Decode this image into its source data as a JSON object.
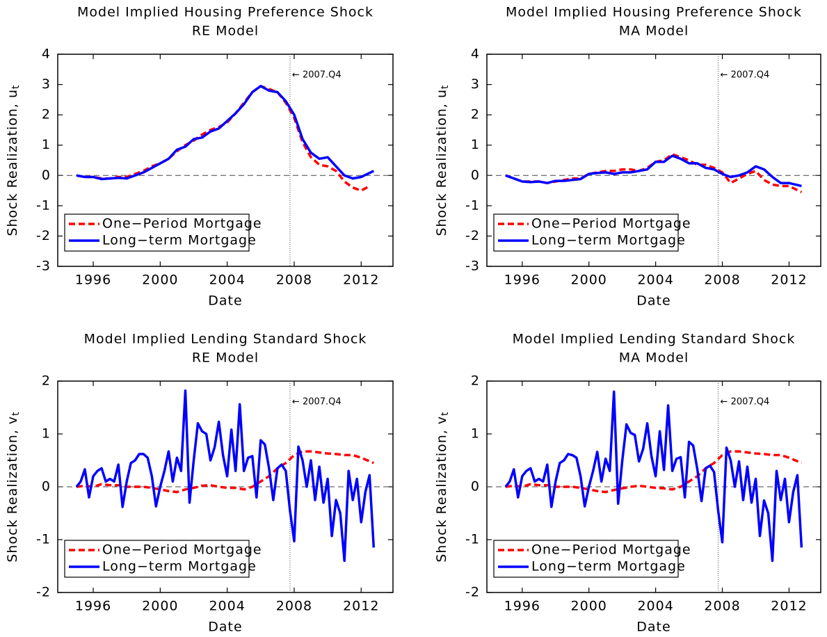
{
  "chart_data": [
    {
      "type": "line",
      "title": "Model Implied Housing Preference Shock",
      "subtitle": "RE Model",
      "xlabel": "Date",
      "ylabel": "Shock Realization, u",
      "ylabel_subscript": "t",
      "xlim": [
        1993.88,
        2013.9
      ],
      "xticks": [
        1996,
        2000,
        2004,
        2008,
        2012
      ],
      "ylim": [
        -3,
        4
      ],
      "yticks": [
        -3,
        -2,
        -1,
        0,
        1,
        2,
        3,
        4
      ],
      "hline": 0,
      "vline": 2007.75,
      "annotation": "← 2007.Q4",
      "legend": "lower left",
      "series": [
        {
          "name": "One−Period Mortgage",
          "color": "#ff0000",
          "style": "dashed",
          "x": [
            1995,
            1995.5,
            1996,
            1996.5,
            1997,
            1997.5,
            1998,
            1998.5,
            1999,
            1999.5,
            2000,
            2000.5,
            2001,
            2001.5,
            2002,
            2002.5,
            2003,
            2003.5,
            2004,
            2004.5,
            2005,
            2005.5,
            2006,
            2006.5,
            2007,
            2007.5,
            2008,
            2008.5,
            2009,
            2009.5,
            2010,
            2010.5,
            2011,
            2011.5,
            2012,
            2012.5
          ],
          "values": [
            0,
            -0.05,
            -0.05,
            -0.1,
            -0.1,
            -0.05,
            -0.05,
            0.05,
            0.15,
            0.3,
            0.4,
            0.55,
            0.8,
            1.0,
            1.15,
            1.35,
            1.5,
            1.6,
            1.75,
            2.05,
            2.4,
            2.75,
            2.95,
            2.85,
            2.75,
            2.4,
            1.9,
            1.1,
            0.6,
            0.35,
            0.3,
            0.15,
            -0.2,
            -0.4,
            -0.5,
            -0.35
          ]
        },
        {
          "name": "Long−term Mortgage",
          "color": "#0000ff",
          "style": "solid",
          "x": [
            1995,
            1995.5,
            1996,
            1996.5,
            1997,
            1997.5,
            1998,
            1998.5,
            1999,
            1999.5,
            2000,
            2000.5,
            2001,
            2001.5,
            2002,
            2002.5,
            2003,
            2003.5,
            2004,
            2004.5,
            2005,
            2005.5,
            2006,
            2006.5,
            2007,
            2007.5,
            2008,
            2008.5,
            2009,
            2009.5,
            2010,
            2010.5,
            2011,
            2011.5,
            2012,
            2012.75
          ],
          "values": [
            0,
            -0.05,
            -0.05,
            -0.12,
            -0.1,
            -0.08,
            -0.1,
            0.0,
            0.1,
            0.25,
            0.4,
            0.55,
            0.85,
            0.95,
            1.2,
            1.25,
            1.45,
            1.55,
            1.8,
            2.05,
            2.35,
            2.75,
            2.95,
            2.8,
            2.75,
            2.45,
            2.0,
            1.2,
            0.75,
            0.55,
            0.6,
            0.3,
            0.0,
            -0.1,
            -0.05,
            0.15
          ]
        }
      ]
    },
    {
      "type": "line",
      "title": "Model Implied Housing Preference Shock",
      "subtitle": "MA Model",
      "xlabel": "Date",
      "ylabel": "Shock Realization, u",
      "ylabel_subscript": "t",
      "xlim": [
        1993.88,
        2013.9
      ],
      "xticks": [
        1996,
        2000,
        2004,
        2008,
        2012
      ],
      "ylim": [
        -3,
        4
      ],
      "yticks": [
        -3,
        -2,
        -1,
        0,
        1,
        2,
        3,
        4
      ],
      "hline": 0,
      "vline": 2007.75,
      "annotation": "← 2007.Q4",
      "legend": "lower left",
      "series": [
        {
          "name": "One−Period Mortgage",
          "color": "#ff0000",
          "style": "dashed",
          "x": [
            1995,
            1995.5,
            1996,
            1996.5,
            1997,
            1997.5,
            1998,
            1998.5,
            1999,
            1999.5,
            2000,
            2000.5,
            2001,
            2001.5,
            2002,
            2002.5,
            2003,
            2003.5,
            2004,
            2004.5,
            2005,
            2005.5,
            2006,
            2006.5,
            2007,
            2007.5,
            2008,
            2008.5,
            2009,
            2009.5,
            2010,
            2010.5,
            2011,
            2011.5,
            2012,
            2012.75
          ],
          "values": [
            0,
            -0.1,
            -0.2,
            -0.2,
            -0.2,
            -0.25,
            -0.2,
            -0.15,
            -0.1,
            -0.1,
            0.05,
            0.1,
            0.15,
            0.15,
            0.2,
            0.2,
            0.15,
            0.25,
            0.45,
            0.5,
            0.7,
            0.6,
            0.5,
            0.35,
            0.35,
            0.25,
            0.1,
            -0.25,
            -0.1,
            0.05,
            0.15,
            -0.15,
            -0.3,
            -0.35,
            -0.35,
            -0.55
          ]
        },
        {
          "name": "Long−term Mortgage",
          "color": "#0000ff",
          "style": "solid",
          "x": [
            1995,
            1995.5,
            1996,
            1996.5,
            1997,
            1997.5,
            1998,
            1998.5,
            1999,
            1999.5,
            2000,
            2000.5,
            2001,
            2001.5,
            2002,
            2002.5,
            2003,
            2003.5,
            2004,
            2004.5,
            2005,
            2005.5,
            2006,
            2006.5,
            2007,
            2007.5,
            2008,
            2008.5,
            2009,
            2009.5,
            2010,
            2010.5,
            2011,
            2011.5,
            2012,
            2012.75
          ],
          "values": [
            0,
            -0.1,
            -0.2,
            -0.22,
            -0.2,
            -0.25,
            -0.18,
            -0.18,
            -0.15,
            -0.12,
            0.05,
            0.08,
            0.1,
            0.05,
            0.1,
            0.1,
            0.15,
            0.2,
            0.45,
            0.45,
            0.65,
            0.55,
            0.4,
            0.4,
            0.25,
            0.2,
            0.05,
            -0.05,
            0.0,
            0.1,
            0.3,
            0.2,
            -0.05,
            -0.25,
            -0.25,
            -0.35
          ]
        }
      ]
    },
    {
      "type": "line",
      "title": "Model Implied Lending Standard Shock",
      "subtitle": "RE Model",
      "xlabel": "Date",
      "ylabel": "Shock Realization, v",
      "ylabel_subscript": "t",
      "xlim": [
        1993.88,
        2013.9
      ],
      "xticks": [
        1996,
        2000,
        2004,
        2008,
        2012
      ],
      "ylim": [
        -2,
        2
      ],
      "yticks": [
        -2,
        -1,
        0,
        1,
        2
      ],
      "hline": 0,
      "vline": 2007.75,
      "annotation": "← 2007.Q4",
      "legend": "lower left",
      "series": [
        {
          "name": "One−Period Mortgage",
          "color": "#ff0000",
          "style": "dashed",
          "x": [
            1995,
            1995.5,
            1996,
            1996.5,
            1997,
            1997.5,
            1998,
            1998.5,
            1999,
            1999.5,
            2000,
            2000.5,
            2001,
            2001.5,
            2002,
            2002.5,
            2003,
            2003.5,
            2004,
            2004.5,
            2005,
            2005.5,
            2006,
            2006.5,
            2007,
            2007.5,
            2008,
            2008.5,
            2009,
            2009.5,
            2010,
            2010.5,
            2011,
            2011.5,
            2012,
            2012.75
          ],
          "values": [
            0,
            0.02,
            0.0,
            0.05,
            0.03,
            0.03,
            0.0,
            0.0,
            0.0,
            -0.02,
            -0.05,
            -0.08,
            -0.1,
            -0.05,
            -0.02,
            0.02,
            0.03,
            0.0,
            -0.02,
            -0.02,
            -0.05,
            0.0,
            0.1,
            0.2,
            0.35,
            0.45,
            0.6,
            0.67,
            0.67,
            0.65,
            0.63,
            0.62,
            0.6,
            0.6,
            0.55,
            0.45
          ]
        },
        {
          "name": "Long−term Mortgage",
          "color": "#0000ff",
          "style": "solid",
          "x": [
            1995,
            1995.25,
            1995.5,
            1995.75,
            1996,
            1996.25,
            1996.5,
            1996.75,
            1997,
            1997.25,
            1997.5,
            1997.75,
            1998,
            1998.25,
            1998.5,
            1998.75,
            1999,
            1999.25,
            1999.5,
            1999.75,
            2000,
            2000.25,
            2000.5,
            2000.75,
            2001,
            2001.25,
            2001.5,
            2001.75,
            2002,
            2002.25,
            2002.5,
            2002.75,
            2003,
            2003.25,
            2003.5,
            2003.75,
            2004,
            2004.25,
            2004.5,
            2004.75,
            2005,
            2005.25,
            2005.5,
            2005.75,
            2006,
            2006.25,
            2006.5,
            2006.75,
            2007,
            2007.25,
            2007.5,
            2007.75,
            2008,
            2008.25,
            2008.5,
            2008.75,
            2009,
            2009.25,
            2009.5,
            2009.75,
            2010,
            2010.25,
            2010.5,
            2010.75,
            2011,
            2011.25,
            2011.5,
            2011.75,
            2012,
            2012.25,
            2012.5,
            2012.75
          ],
          "values": [
            0,
            0.1,
            0.33,
            -0.2,
            0.2,
            0.3,
            0.35,
            0.1,
            0.15,
            0.1,
            0.42,
            -0.38,
            0.1,
            0.45,
            0.5,
            0.62,
            0.62,
            0.55,
            0.2,
            -0.37,
            0.0,
            0.3,
            0.67,
            0.1,
            0.55,
            0.3,
            1.82,
            -0.3,
            0.5,
            1.2,
            1.05,
            1.0,
            0.5,
            0.75,
            1.23,
            0.6,
            0.2,
            1.08,
            0.3,
            1.56,
            0.3,
            0.55,
            0.58,
            -0.2,
            0.88,
            0.8,
            0.35,
            -0.25,
            0.35,
            0.42,
            0.3,
            -0.45,
            -1.03,
            0.76,
            0.5,
            0.0,
            0.5,
            -0.25,
            0.38,
            -0.3,
            0.15,
            -0.93,
            -0.25,
            -0.5,
            -1.4,
            0.3,
            -0.25,
            0.15,
            -0.67,
            -0.1,
            0.22,
            -1.15
          ]
        }
      ]
    },
    {
      "type": "line",
      "title": "Model Implied Lending Standard Shock",
      "subtitle": "MA Model",
      "xlabel": "Date",
      "ylabel": "Shock Realization, v",
      "ylabel_subscript": "t",
      "xlim": [
        1993.88,
        2013.9
      ],
      "xticks": [
        1996,
        2000,
        2004,
        2008,
        2012
      ],
      "ylim": [
        -2,
        2
      ],
      "yticks": [
        -2,
        -1,
        0,
        1,
        2
      ],
      "hline": 0,
      "vline": 2007.75,
      "annotation": "← 2007.Q4",
      "legend": "lower left",
      "series": [
        {
          "name": "One−Period Mortgage",
          "color": "#ff0000",
          "style": "dashed",
          "x": [
            1995,
            1995.5,
            1996,
            1996.5,
            1997,
            1997.5,
            1998,
            1998.5,
            1999,
            1999.5,
            2000,
            2000.5,
            2001,
            2001.5,
            2002,
            2002.5,
            2003,
            2003.5,
            2004,
            2004.5,
            2005,
            2005.5,
            2006,
            2006.5,
            2007,
            2007.5,
            2008,
            2008.5,
            2009,
            2009.5,
            2010,
            2010.5,
            2011,
            2011.5,
            2012,
            2012.75
          ],
          "values": [
            0,
            0.02,
            0.0,
            0.05,
            0.03,
            0.03,
            0.0,
            0.0,
            0.0,
            -0.02,
            -0.05,
            -0.08,
            -0.1,
            -0.06,
            -0.03,
            0.0,
            0.02,
            0.0,
            -0.02,
            -0.03,
            -0.05,
            0.0,
            0.1,
            0.2,
            0.35,
            0.45,
            0.6,
            0.67,
            0.67,
            0.65,
            0.63,
            0.62,
            0.6,
            0.6,
            0.55,
            0.45
          ]
        },
        {
          "name": "Long−term Mortgage",
          "color": "#0000ff",
          "style": "solid",
          "x": [
            1995,
            1995.25,
            1995.5,
            1995.75,
            1996,
            1996.25,
            1996.5,
            1996.75,
            1997,
            1997.25,
            1997.5,
            1997.75,
            1998,
            1998.25,
            1998.5,
            1998.75,
            1999,
            1999.25,
            1999.5,
            1999.75,
            2000,
            2000.25,
            2000.5,
            2000.75,
            2001,
            2001.25,
            2001.5,
            2001.75,
            2002,
            2002.25,
            2002.5,
            2002.75,
            2003,
            2003.25,
            2003.5,
            2003.75,
            2004,
            2004.25,
            2004.5,
            2004.75,
            2005,
            2005.25,
            2005.5,
            2005.75,
            2006,
            2006.25,
            2006.5,
            2006.75,
            2007,
            2007.25,
            2007.5,
            2007.75,
            2008,
            2008.25,
            2008.5,
            2008.75,
            2009,
            2009.25,
            2009.5,
            2009.75,
            2010,
            2010.25,
            2010.5,
            2010.75,
            2011,
            2011.25,
            2011.5,
            2011.75,
            2012,
            2012.25,
            2012.5,
            2012.75
          ],
          "values": [
            0,
            0.1,
            0.33,
            -0.2,
            0.2,
            0.3,
            0.35,
            0.1,
            0.15,
            0.1,
            0.42,
            -0.38,
            0.1,
            0.45,
            0.5,
            0.62,
            0.6,
            0.55,
            0.2,
            -0.37,
            0.0,
            0.3,
            0.66,
            0.1,
            0.53,
            0.3,
            1.8,
            -0.32,
            0.5,
            1.18,
            1.02,
            0.98,
            0.48,
            0.72,
            1.2,
            0.58,
            0.2,
            1.05,
            0.32,
            1.54,
            0.3,
            0.53,
            0.56,
            -0.2,
            0.85,
            0.78,
            0.33,
            -0.27,
            0.35,
            0.4,
            0.28,
            -0.45,
            -1.05,
            0.74,
            0.5,
            0.0,
            0.48,
            -0.25,
            0.38,
            -0.3,
            0.15,
            -0.93,
            -0.26,
            -0.5,
            -1.4,
            0.3,
            -0.25,
            0.15,
            -0.67,
            -0.1,
            0.22,
            -1.15
          ]
        }
      ]
    }
  ]
}
